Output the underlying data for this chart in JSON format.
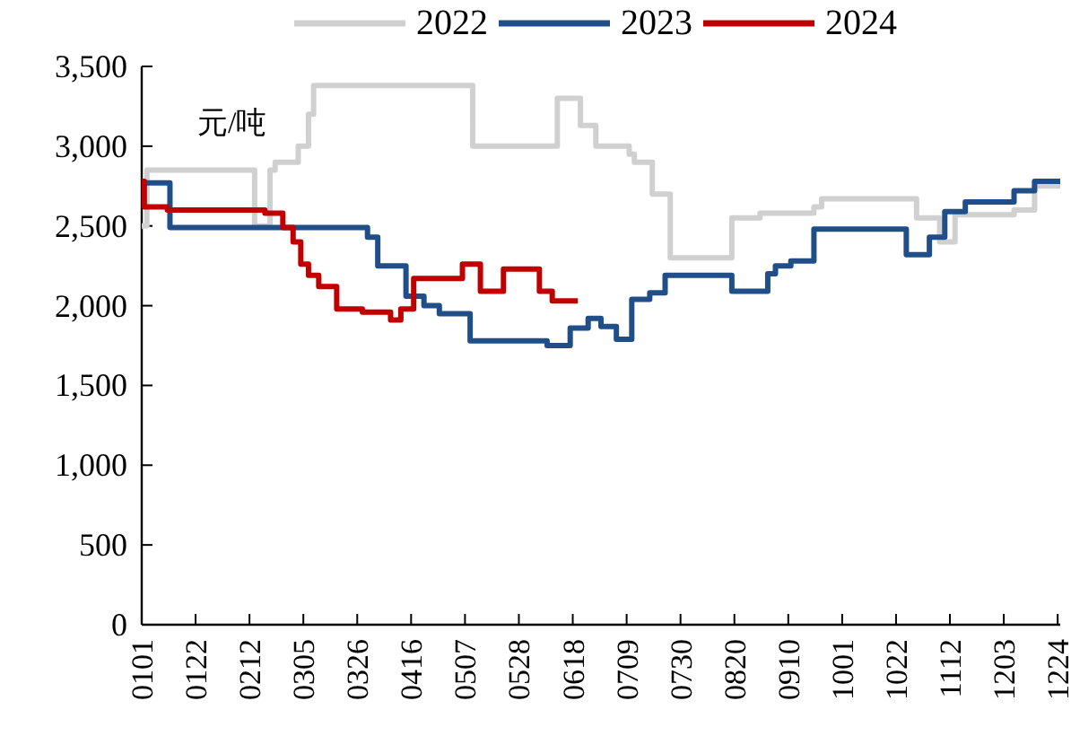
{
  "chart_data": {
    "type": "step",
    "legend": "top",
    "annotations": [
      "元/吨"
    ],
    "xlim": [
      "--01-01",
      "--12-25"
    ],
    "xticks": [
      {
        "value": "--01-01",
        "label": "0101"
      },
      {
        "value": "--01-22",
        "label": "0122"
      },
      {
        "value": "--02-12",
        "label": "0212"
      },
      {
        "value": "--03-05",
        "label": "0305"
      },
      {
        "value": "--03-26",
        "label": "0326"
      },
      {
        "value": "--04-16",
        "label": "0416"
      },
      {
        "value": "--05-07",
        "label": "0507"
      },
      {
        "value": "--05-28",
        "label": "0528"
      },
      {
        "value": "--06-18",
        "label": "0618"
      },
      {
        "value": "--07-09",
        "label": "0709"
      },
      {
        "value": "--07-30",
        "label": "0730"
      },
      {
        "value": "--08-20",
        "label": "0820"
      },
      {
        "value": "--09-10",
        "label": "0910"
      },
      {
        "value": "--10-01",
        "label": "1001"
      },
      {
        "value": "--10-22",
        "label": "1022"
      },
      {
        "value": "--11-12",
        "label": "1112"
      },
      {
        "value": "--12-03",
        "label": "1203"
      },
      {
        "value": "--12-24",
        "label": "1224"
      }
    ],
    "ylim": [
      0,
      3500
    ],
    "yticks": [
      {
        "value": 0,
        "label": "0"
      },
      {
        "value": 500,
        "label": "500"
      },
      {
        "value": 1000,
        "label": "1,000"
      },
      {
        "value": 1500,
        "label": "1,500"
      },
      {
        "value": 2000,
        "label": "2,000"
      },
      {
        "value": 2500,
        "label": "2,500"
      },
      {
        "value": 3000,
        "label": "3,000"
      },
      {
        "value": 3500,
        "label": "3,500"
      }
    ],
    "series": [
      {
        "name": "2022",
        "color": "#d0d0d0",
        "x": [
          "--01-01",
          "--01-03",
          "--02-14",
          "--02-20",
          "--02-22",
          "--03-03",
          "--03-07",
          "--03-09",
          "--05-10",
          "--06-12",
          "--06-21",
          "--06-27",
          "--07-10",
          "--07-12",
          "--07-19",
          "--07-26",
          "--08-19",
          "--08-30",
          "--09-20",
          "--09-23",
          "--10-30",
          "--11-08",
          "--11-14",
          "--12-07",
          "--12-15",
          "--12-25"
        ],
        "values": [
          2500,
          2850,
          2500,
          2850,
          2900,
          3000,
          3200,
          3380,
          3000,
          3300,
          3130,
          3000,
          2950,
          2900,
          2700,
          2300,
          2550,
          2580,
          2620,
          2670,
          2550,
          2400,
          2570,
          2600,
          2750,
          2750
        ]
      },
      {
        "name": "2023",
        "color": "#1f4e89",
        "x": [
          "--01-01",
          "--01-12",
          "--03-30",
          "--04-03",
          "--04-14",
          "--04-21",
          "--04-27",
          "--05-09",
          "--06-08",
          "--06-17",
          "--06-24",
          "--06-29",
          "--07-05",
          "--07-11",
          "--07-18",
          "--07-24",
          "--08-19",
          "--09-02",
          "--09-05",
          "--09-11",
          "--09-20",
          "--10-26",
          "--11-04",
          "--11-10",
          "--11-18",
          "--12-07",
          "--12-15",
          "--12-25"
        ],
        "values": [
          2770,
          2490,
          2430,
          2250,
          2060,
          2000,
          1950,
          1780,
          1750,
          1860,
          1920,
          1870,
          1790,
          2040,
          2080,
          2190,
          2090,
          2200,
          2250,
          2280,
          2480,
          2320,
          2430,
          2590,
          2650,
          2720,
          2780,
          2780
        ]
      },
      {
        "name": "2024",
        "color": "#c00000",
        "x": [
          "--01-01",
          "--01-02",
          "--01-11",
          "--02-18",
          "--02-25",
          "--03-01",
          "--03-04",
          "--03-07",
          "--03-11",
          "--03-18",
          "--03-28",
          "--04-08",
          "--04-12",
          "--04-17",
          "--05-06",
          "--05-13",
          "--05-22",
          "--06-05",
          "--06-10",
          "--06-20"
        ],
        "values": [
          2780,
          2620,
          2600,
          2580,
          2490,
          2400,
          2260,
          2190,
          2120,
          1980,
          1960,
          1910,
          1980,
          2170,
          2260,
          2090,
          2230,
          2090,
          2030,
          2030
        ]
      }
    ]
  }
}
